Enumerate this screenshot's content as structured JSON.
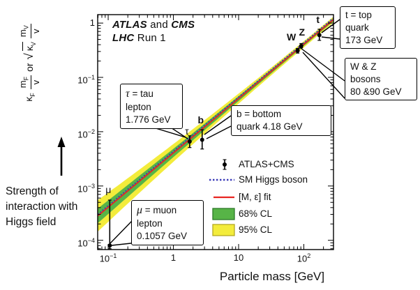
{
  "title": {
    "atlas": "ATLAS",
    "and": " and ",
    "cms": "CMS",
    "lhc": "LHC",
    "run": "  Run 1"
  },
  "ylabel": {
    "kappa1": "κ",
    "sub_f1": "F",
    "m_f": "m",
    "sub_f2": "F",
    "v1": "v",
    "or": "or",
    "sqrt": "√",
    "kappa2": "κ",
    "sub_v1": "V",
    "m_v": "m",
    "sub_v2": "V",
    "v2": "v"
  },
  "side_note": {
    "lines": [
      "Strength of",
      "interaction with",
      "Higgs field"
    ]
  },
  "xaxis": {
    "label": "Particle mass [GeV]"
  },
  "legend": {
    "items": [
      {
        "key": "data",
        "label": "ATLAS+CMS"
      },
      {
        "key": "sm",
        "label": "SM Higgs boson"
      },
      {
        "key": "fit",
        "label": "[M, ε] fit"
      },
      {
        "key": "cl68",
        "label": "68% CL"
      },
      {
        "key": "cl95",
        "label": "95% CL"
      }
    ]
  },
  "annotations": [
    {
      "id": "tau",
      "lines": [
        {
          "lead": "τ",
          "rest": " = tau"
        },
        {
          "lead": "",
          "rest": "lepton"
        },
        {
          "lead": "",
          "rest": "1.776 GeV"
        }
      ]
    },
    {
      "id": "bottom",
      "lines": [
        {
          "lead": "",
          "rest": "b = bottom"
        },
        {
          "lead": "",
          "rest": "quark  4.18 GeV"
        }
      ]
    },
    {
      "id": "top",
      "lines": [
        {
          "lead": "",
          "rest": "t = top"
        },
        {
          "lead": "",
          "rest": "quark"
        },
        {
          "lead": "",
          "rest": "173 GeV"
        }
      ]
    },
    {
      "id": "wz",
      "lines": [
        {
          "lead": "",
          "rest": "W & Z"
        },
        {
          "lead": "",
          "rest": "bosons"
        },
        {
          "lead": "",
          "rest": "80 &90 GeV"
        }
      ]
    },
    {
      "id": "muon",
      "lines": [
        {
          "lead": "μ",
          "rest": " = muon"
        },
        {
          "lead": "",
          "rest": "lepton"
        },
        {
          "lead": "",
          "rest": "0.1057 GeV"
        }
      ]
    }
  ],
  "chart_data": {
    "type": "scatter",
    "title": "ATLAS and CMS LHC Run 1",
    "xlabel": "Particle mass [GeV]",
    "ylabel": "κF·mF/v or √κV·mV/v",
    "x_scale": "log",
    "y_scale": "log",
    "xlim": [
      0.069,
      285
    ],
    "ylim": [
      6.75e-05,
      1.43
    ],
    "grid": false,
    "legend_position": "inside-right",
    "x_ticks": [
      {
        "value": 0.1,
        "base": "10",
        "exp": "−1"
      },
      {
        "value": 1,
        "base": "1",
        "exp": ""
      },
      {
        "value": 10,
        "base": "10",
        "exp": ""
      },
      {
        "value": 100,
        "base": "10",
        "exp": "2"
      }
    ],
    "y_ticks": [
      {
        "value": 1,
        "base": "1",
        "exp": ""
      },
      {
        "value": 0.1,
        "base": "10",
        "exp": "−1"
      },
      {
        "value": 0.01,
        "base": "10",
        "exp": "−2"
      },
      {
        "value": 0.001,
        "base": "10",
        "exp": "−3"
      },
      {
        "value": 0.0001,
        "base": "10",
        "exp": "−4"
      }
    ],
    "points": [
      {
        "label": "μ",
        "particle": "muon lepton",
        "mass_gev": 0.1057,
        "value": 8e-05,
        "err_low": 7e-05,
        "err_high": 0.00055
      },
      {
        "label": "τ",
        "particle": "tau lepton",
        "mass_gev": 1.776,
        "value": 0.0066,
        "err_low": 0.0051,
        "err_high": 0.0084
      },
      {
        "label": "b",
        "particle": "bottom quark",
        "mass_gev": 2.76,
        "value": 0.0071,
        "err_low": 0.0048,
        "err_high": 0.0109
      },
      {
        "label": "W",
        "particle": "W boson",
        "mass_gev": 80.4,
        "value": 0.31,
        "err_low": 0.28,
        "err_high": 0.34
      },
      {
        "label": "Z",
        "particle": "Z boson",
        "mass_gev": 91.2,
        "value": 0.38,
        "err_low": 0.35,
        "err_high": 0.42
      },
      {
        "label": "t",
        "particle": "top quark",
        "mass_gev": 173,
        "value": 0.6,
        "err_low": 0.48,
        "err_high": 0.77
      }
    ],
    "fit_line": {
      "label": "[M, ε] fit",
      "vev_gev": 246
    },
    "sm_line": {
      "label": "SM Higgs boson",
      "offset_dex": 0.03
    },
    "bands": [
      {
        "label": "95% CL",
        "hw_left_dex": 0.29,
        "hw_right_dex": 0.055,
        "color": "#f3ec3b"
      },
      {
        "label": "68% CL",
        "hw_left_dex": 0.135,
        "hw_right_dex": 0.028,
        "color": "#57b447"
      }
    ],
    "colors": {
      "fit_line": "#e82420",
      "sm_line": "#3a3ab8",
      "data": "#000000",
      "band_95": "#f3ec3b",
      "band_68": "#57b447"
    }
  }
}
